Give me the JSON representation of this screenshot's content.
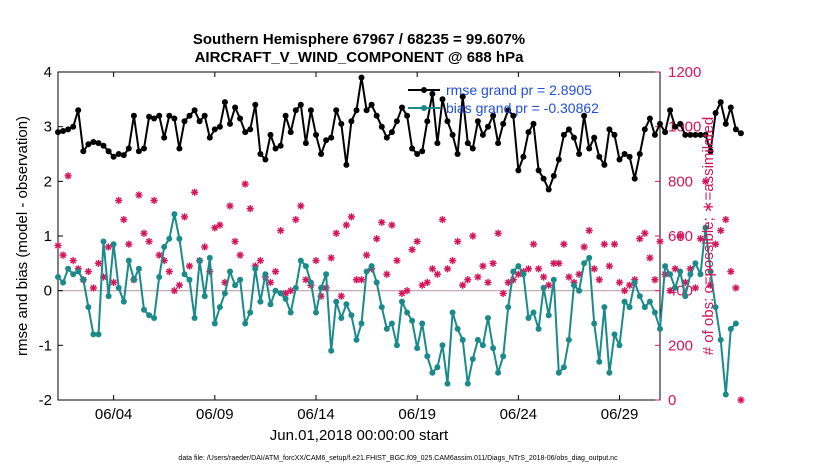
{
  "chart_data": {
    "type": "line",
    "title_line1": "Southern Hemisphere 67967 / 68235 = 99.607%",
    "title_line2": "AIRCRAFT_V_WIND_COMPONENT @ 688 hPa",
    "xlabel": "Jun.01,2018 00:00:00 start",
    "ylabel_left": "rmse and bias (model - observation)",
    "ylabel_right": "# of obs: o=possible; ∗=assimilated",
    "footer": "data file: /Users/raeder/DAI/ATM_forcXX/CAM6_setup/f.e21.FHIST_BGC.f09_025.CAM6assim.011/Diags_NTrS_2018-06/obs_diag_output.nc",
    "xlim": [
      1.25,
      31.0
    ],
    "ylim_left": [
      -2,
      4
    ],
    "ylim_right": [
      0,
      1200
    ],
    "x_ticks": [
      {
        "value": 4,
        "label": "06/04"
      },
      {
        "value": 9,
        "label": "06/09"
      },
      {
        "value": 14,
        "label": "06/14"
      },
      {
        "value": 19,
        "label": "06/19"
      },
      {
        "value": 24,
        "label": "06/24"
      },
      {
        "value": 29,
        "label": "06/29"
      }
    ],
    "y_ticks_left": [
      "-2",
      "-1",
      "0",
      "1",
      "2",
      "3",
      "4"
    ],
    "y_ticks_right": [
      "0",
      "200",
      "400",
      "600",
      "800",
      "1000",
      "1200"
    ],
    "colors": {
      "rmse": "#000000",
      "bias": "#1a8a8a",
      "obs": "#d4145a",
      "zero_line": "#c0a0a8",
      "legend_text": "#1f4fd8"
    },
    "series": [
      {
        "name": "rmse",
        "legend": "rmse grand pr = 2.8905",
        "axis": "left",
        "x_start": 1.25,
        "x_step": 0.25,
        "values": [
          2.9,
          2.92,
          2.95,
          3.0,
          3.3,
          2.55,
          2.68,
          2.72,
          2.7,
          2.65,
          2.55,
          2.45,
          2.5,
          2.48,
          2.6,
          3.2,
          2.55,
          2.6,
          3.18,
          3.15,
          3.2,
          2.8,
          3.2,
          3.15,
          2.6,
          3.1,
          3.2,
          3.3,
          3.1,
          3.2,
          2.8,
          2.95,
          3.0,
          3.45,
          3.05,
          3.35,
          3.15,
          2.9,
          2.95,
          3.4,
          2.5,
          2.4,
          2.85,
          2.6,
          2.65,
          3.2,
          2.9,
          3.3,
          3.4,
          2.7,
          3.3,
          2.85,
          2.5,
          2.75,
          2.8,
          3.3,
          3.05,
          2.3,
          3.1,
          3.3,
          3.9,
          3.3,
          3.4,
          3.2,
          3.0,
          2.8,
          2.9,
          3.1,
          3.35,
          3.2,
          2.6,
          2.5,
          2.55,
          3.1,
          3.6,
          2.7,
          3.5,
          3.1,
          2.85,
          2.5,
          3.55,
          2.7,
          2.6,
          3.1,
          2.85,
          3.0,
          3.2,
          2.7,
          3.05,
          3.3,
          3.2,
          2.2,
          2.45,
          2.9,
          3.05,
          2.2,
          2.05,
          1.85,
          2.1,
          2.4,
          2.85,
          2.95,
          2.8,
          2.5,
          3.2,
          2.6,
          2.8,
          2.45,
          2.3,
          2.95,
          2.85,
          2.4,
          2.5,
          2.45,
          2.05,
          2.5,
          2.95,
          3.15,
          2.85,
          3.05,
          2.9,
          3.3,
          3.0,
          3.05,
          2.85,
          2.85,
          2.85,
          2.85,
          2.85,
          2.55,
          3.25,
          3.45,
          3.05,
          3.35,
          2.95,
          2.88
        ]
      },
      {
        "name": "bias",
        "legend": "bias grand pr = -0.30862",
        "axis": "left",
        "x_start": 1.25,
        "x_step": 0.25,
        "values": [
          0.25,
          0.15,
          0.4,
          0.3,
          0.35,
          0.2,
          -0.3,
          -0.8,
          -0.8,
          0.9,
          -0.1,
          0.85,
          0.05,
          -0.2,
          0.55,
          0.2,
          0.4,
          -0.35,
          -0.45,
          -0.5,
          0.25,
          0.8,
          0.95,
          1.4,
          0.95,
          0.3,
          0.2,
          -0.5,
          0.55,
          -0.1,
          0.6,
          -0.6,
          -0.3,
          -0.05,
          0.35,
          0.1,
          0.2,
          -0.6,
          -0.4,
          0.4,
          -0.2,
          0.3,
          -0.25,
          0.0,
          -0.05,
          -0.15,
          -0.4,
          0.05,
          0.55,
          0.45,
          0.15,
          -0.4,
          0.05,
          0.3,
          -1.1,
          -0.2,
          -0.5,
          -0.25,
          -0.45,
          -0.9,
          -0.6,
          0.35,
          0.45,
          0.15,
          -0.3,
          -0.7,
          -0.6,
          -1.0,
          -0.2,
          -0.4,
          -0.55,
          -1.05,
          -0.6,
          -1.2,
          -1.5,
          -1.4,
          -1.0,
          -1.7,
          -0.4,
          -0.7,
          -0.9,
          -1.7,
          -1.25,
          -0.9,
          -1.0,
          -0.5,
          -1.05,
          -1.5,
          -1.2,
          -0.3,
          0.35,
          0.45,
          0.3,
          -0.5,
          -0.4,
          -0.7,
          0.05,
          -0.45,
          0.2,
          -1.5,
          -1.4,
          -0.9,
          0.1,
          0.0,
          0.5,
          0.6,
          -0.6,
          -1.3,
          -0.3,
          -1.5,
          -0.8,
          -1.0,
          -0.2,
          -0.3,
          0.15,
          -0.1,
          -0.3,
          -0.2,
          -0.4,
          -0.7,
          0.45,
          0.3,
          0.05,
          0.35,
          -0.1,
          0.3,
          0.5,
          0.3,
          1.15,
          0.35,
          -0.3,
          -0.9,
          -1.9,
          -0.7,
          -0.6
        ]
      },
      {
        "name": "obs_assimilated",
        "axis": "right",
        "x_start": 1.25,
        "x_step": 0.25,
        "values": [
          565,
          530,
          820,
          510,
          480,
          440,
          470,
          410,
          500,
          450,
          560,
          430,
          730,
          660,
          570,
          440,
          750,
          610,
          580,
          730,
          530,
          510,
          470,
          400,
          420,
          670,
          490,
          760,
          510,
          560,
          470,
          630,
          640,
          430,
          710,
          580,
          530,
          790,
          700,
          490,
          510,
          450,
          430,
          470,
          620,
          390,
          400,
          660,
          710,
          440,
          420,
          510,
          380,
          410,
          520,
          610,
          380,
          640,
          670,
          440,
          440,
          530,
          480,
          590,
          650,
          460,
          640,
          510,
          390,
          400,
          550,
          580,
          420,
          430,
          480,
          460,
          660,
          480,
          510,
          580,
          420,
          440,
          600,
          450,
          490,
          430,
          500,
          610,
          390,
          430,
          440,
          460,
          470,
          480,
          570,
          480,
          450,
          420,
          500,
          500,
          570,
          450,
          430,
          460,
          560,
          620,
          480,
          440,
          570,
          490,
          570,
          430,
          400,
          420,
          440,
          590,
          610,
          520,
          440,
          580,
          460,
          400,
          480,
          600,
          430,
          480,
          410,
          590,
          800,
          420,
          570,
          620,
          660,
          470,
          410,
          0
        ]
      }
    ]
  }
}
